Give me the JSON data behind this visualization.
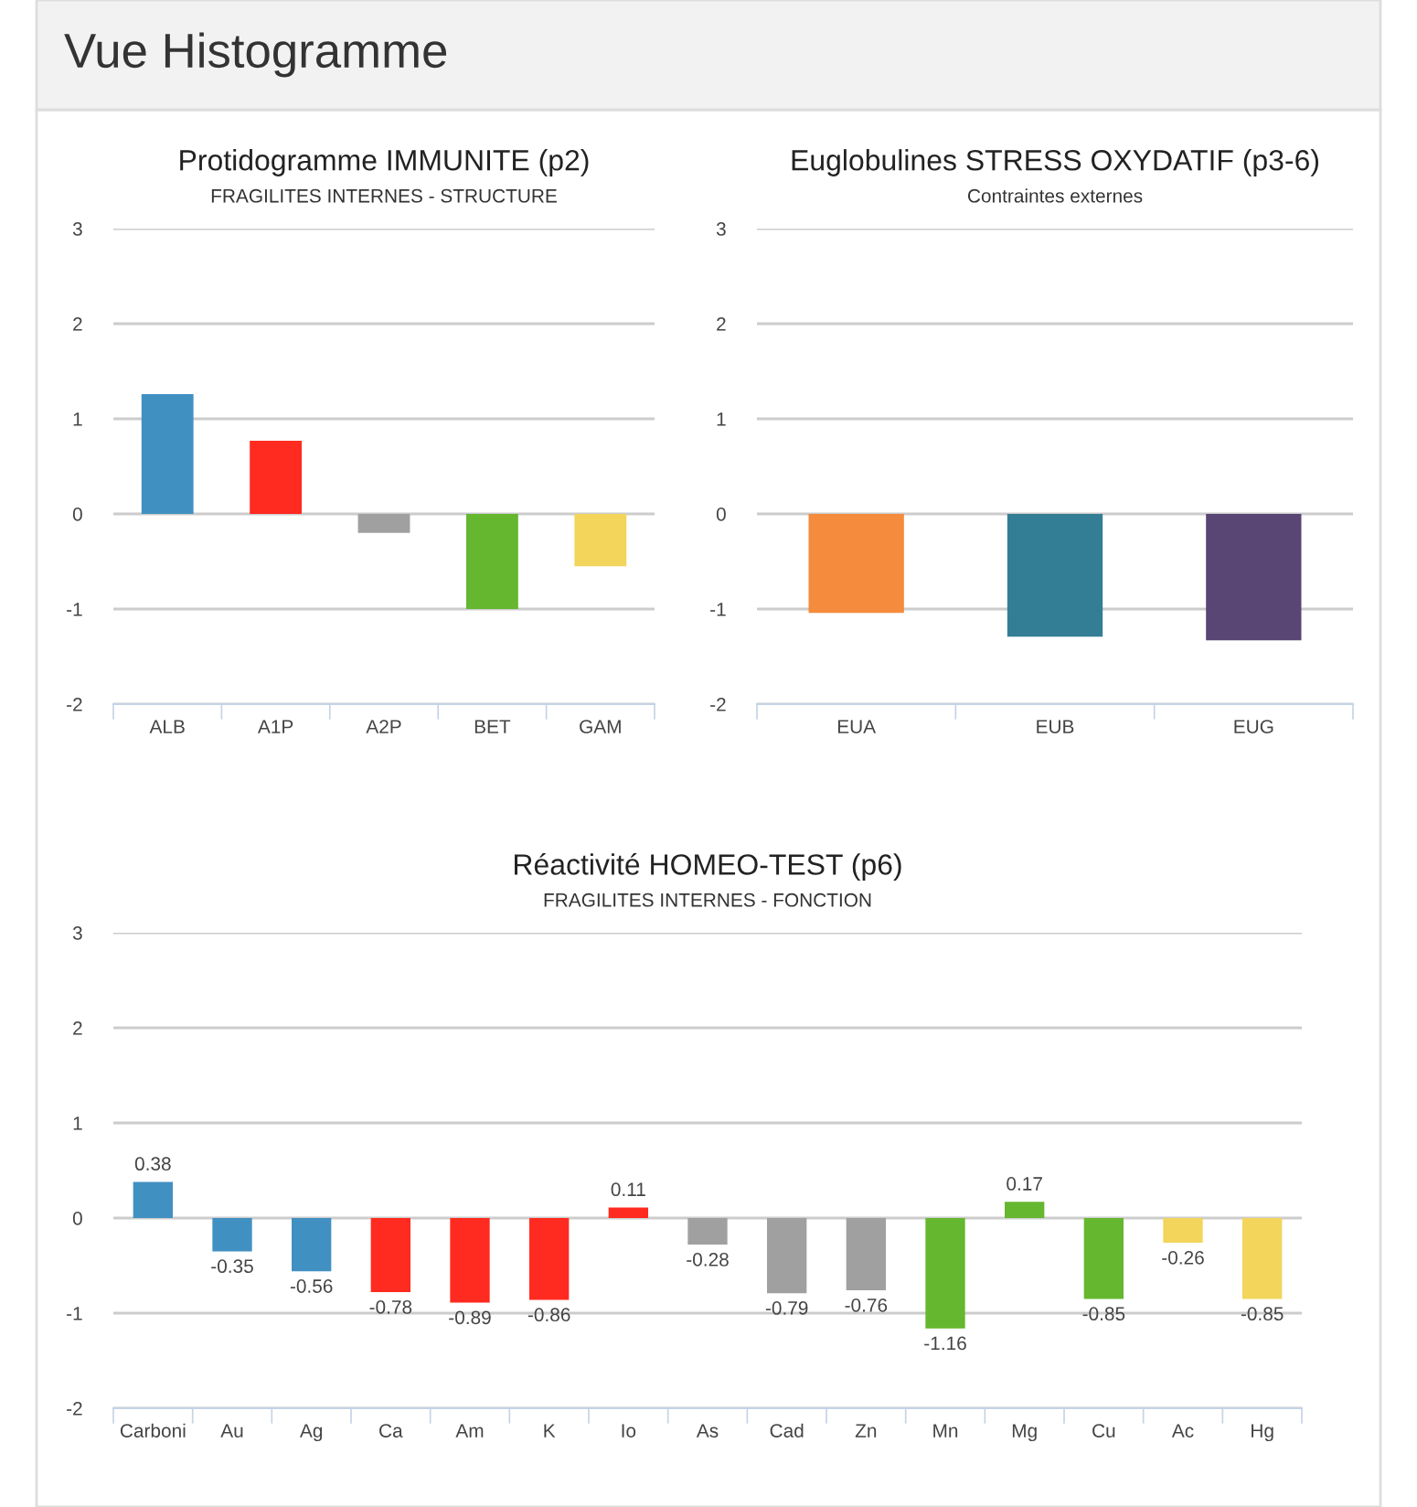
{
  "chart_data": [
    {
      "type": "bar",
      "title": "Protidogramme IMMUNITE (p2)",
      "subtitle": "FRAGILITES INTERNES - STRUCTURE",
      "categories": [
        "ALB",
        "A1P",
        "A2P",
        "BET",
        "GAM"
      ],
      "values": [
        1.26,
        0.77,
        -0.2,
        -1.0,
        -0.55
      ],
      "colors": [
        "#4190c2",
        "#ff2a20",
        "#a0a0a0",
        "#65b72f",
        "#f2d55a"
      ],
      "ylim": [
        -2,
        3
      ],
      "yticks": [
        -2,
        -1,
        0,
        1,
        2,
        3
      ],
      "grid": "y"
    },
    {
      "type": "bar",
      "title": "Euglobulines STRESS OXYDATIF (p3-6)",
      "subtitle": "Contraintes externes",
      "categories": [
        "EUA",
        "EUB",
        "EUG"
      ],
      "values": [
        -1.04,
        -1.29,
        -1.33
      ],
      "colors": [
        "#f58b3c",
        "#337d95",
        "#5a4674"
      ],
      "ylim": [
        -2,
        3
      ],
      "yticks": [
        -2,
        -1,
        0,
        1,
        2,
        3
      ],
      "grid": "y"
    },
    {
      "type": "bar",
      "title": "Réactivité HOMEO-TEST (p6)",
      "subtitle": "FRAGILITES INTERNES - FONCTION",
      "categories": [
        "Carboni",
        "Au",
        "Ag",
        "Ca",
        "Am",
        "K",
        "Io",
        "As",
        "Cad",
        "Zn",
        "Mn",
        "Mg",
        "Cu",
        "Ac",
        "Hg"
      ],
      "values": [
        0.38,
        -0.35,
        -0.56,
        -0.78,
        -0.89,
        -0.86,
        0.11,
        -0.28,
        -0.79,
        -0.76,
        -1.16,
        0.17,
        -0.85,
        -0.26,
        -0.85
      ],
      "colors": [
        "#4190c2",
        "#4190c2",
        "#4190c2",
        "#ff2a20",
        "#ff2a20",
        "#ff2a20",
        "#ff2a20",
        "#a0a0a0",
        "#a0a0a0",
        "#a0a0a0",
        "#65b72f",
        "#65b72f",
        "#65b72f",
        "#f2d55a",
        "#f2d55a"
      ],
      "ylim": [
        -2,
        3
      ],
      "yticks": [
        -2,
        -1,
        0,
        1,
        2,
        3
      ],
      "grid": "y",
      "data_labels": true
    },
    {
      "type": "other",
      "title": "Vue Histogramme"
    }
  ]
}
